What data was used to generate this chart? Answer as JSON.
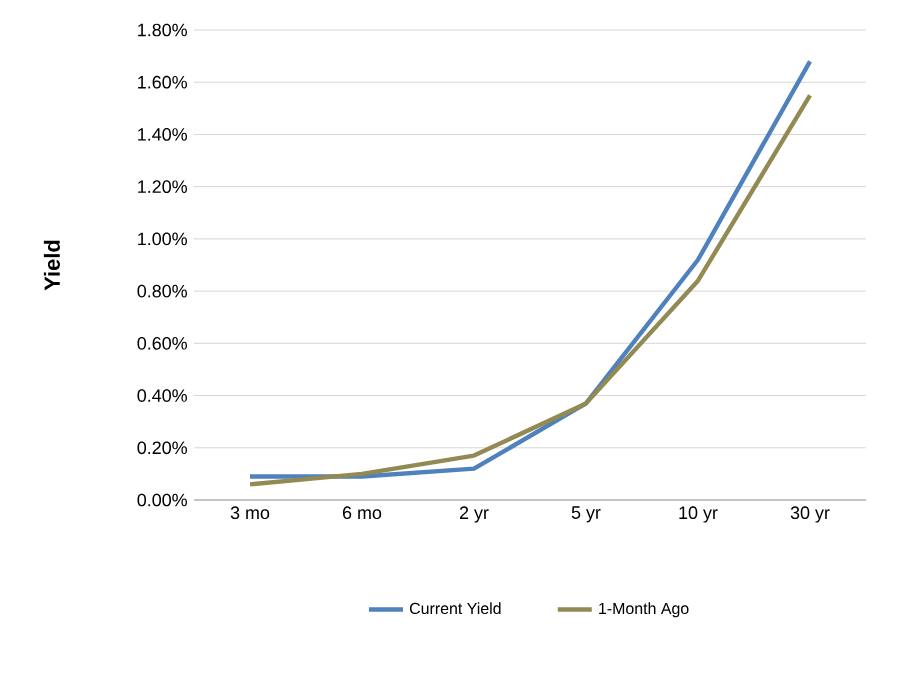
{
  "chart_data": {
    "type": "line",
    "ylabel": "Yield",
    "categories": [
      "3 mo",
      "6 mo",
      "2 yr",
      "5 yr",
      "10 yr",
      "30 yr"
    ],
    "series": [
      {
        "name": "Current Yield",
        "color": "#4f81bd",
        "values": [
          0.09,
          0.09,
          0.12,
          0.37,
          0.92,
          1.68
        ]
      },
      {
        "name": "1-Month Ago",
        "color": "#938953",
        "values": [
          0.06,
          0.1,
          0.17,
          0.37,
          0.84,
          1.55
        ]
      }
    ],
    "ylim": [
      0,
      1.8
    ],
    "yticks": [
      {
        "value": 0,
        "label": "0.00%"
      },
      {
        "value": 0.2,
        "label": "0.20%"
      },
      {
        "value": 0.4,
        "label": "0.40%"
      },
      {
        "value": 0.6,
        "label": "0.60%"
      },
      {
        "value": 0.8,
        "label": "0.80%"
      },
      {
        "value": 1.0,
        "label": "1.00%"
      },
      {
        "value": 1.2,
        "label": "1.20%"
      },
      {
        "value": 1.4,
        "label": "1.40%"
      },
      {
        "value": 1.6,
        "label": "1.60%"
      },
      {
        "value": 1.8,
        "label": "1.80%"
      }
    ],
    "grid": "y",
    "legend": "bottom",
    "marker": "none",
    "line_style": "solid"
  }
}
